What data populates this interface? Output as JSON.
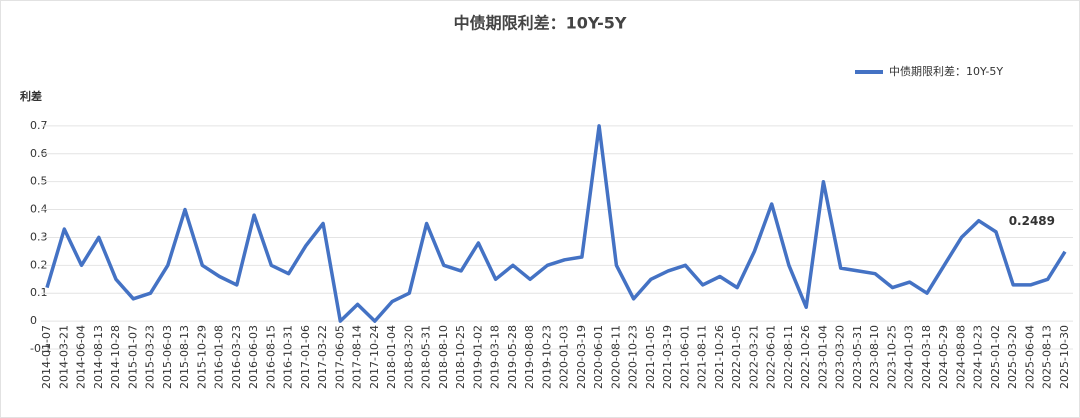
{
  "chart_data": {
    "type": "line",
    "title": "中债期限利差：10Y-5Y",
    "y_label": "利差",
    "x": [
      "2014-01-07",
      "2014-03-21",
      "2014-06-04",
      "2014-08-13",
      "2014-10-28",
      "2015-01-07",
      "2015-03-23",
      "2015-06-03",
      "2015-08-13",
      "2015-10-29",
      "2016-01-08",
      "2016-03-23",
      "2016-06-03",
      "2016-08-15",
      "2016-10-31",
      "2017-01-06",
      "2017-03-22",
      "2017-06-05",
      "2017-08-14",
      "2017-10-24",
      "2018-01-04",
      "2018-03-20",
      "2018-05-31",
      "2018-08-10",
      "2018-10-25",
      "2019-01-02",
      "2019-03-18",
      "2019-05-28",
      "2019-08-08",
      "2019-10-23",
      "2020-01-03",
      "2020-03-19",
      "2020-06-01",
      "2020-08-11",
      "2020-10-23",
      "2021-01-05",
      "2021-03-19",
      "2021-06-01",
      "2021-08-11",
      "2021-10-26",
      "2022-01-05",
      "2022-03-21",
      "2022-06-01",
      "2022-08-11",
      "2022-10-26",
      "2023-01-04",
      "2023-03-20",
      "2023-05-31",
      "2023-08-10",
      "2023-10-25",
      "2024-01-03",
      "2024-03-18",
      "2024-05-29",
      "2024-08-08",
      "2024-10-23",
      "2025-01-02",
      "2025-03-20",
      "2025-06-04",
      "2025-08-13",
      "2025-10-30"
    ],
    "series": [
      {
        "name": "中债期限利差：10Y-5Y",
        "color": "#4472c4",
        "values": [
          0.12,
          0.33,
          0.2,
          0.3,
          0.15,
          0.08,
          0.1,
          0.2,
          0.4,
          0.2,
          0.16,
          0.13,
          0.38,
          0.2,
          0.17,
          0.27,
          0.35,
          0.0,
          0.06,
          0.0,
          0.07,
          0.1,
          0.35,
          0.2,
          0.18,
          0.28,
          0.15,
          0.2,
          0.15,
          0.2,
          0.22,
          0.23,
          0.7,
          0.2,
          0.08,
          0.15,
          0.18,
          0.2,
          0.13,
          0.16,
          0.12,
          0.25,
          0.42,
          0.2,
          0.05,
          0.5,
          0.19,
          0.18,
          0.17,
          0.12,
          0.14,
          0.1,
          0.2,
          0.3,
          0.36,
          0.32,
          0.13,
          0.13,
          0.15,
          0.2489
        ]
      }
    ],
    "ylim": [
      -0.1,
      0.8
    ],
    "yticks": [
      -0.1,
      0,
      0.1,
      0.2,
      0.3,
      0.4,
      0.5,
      0.6,
      0.7
    ],
    "grid": true,
    "legend": "top-right"
  }
}
